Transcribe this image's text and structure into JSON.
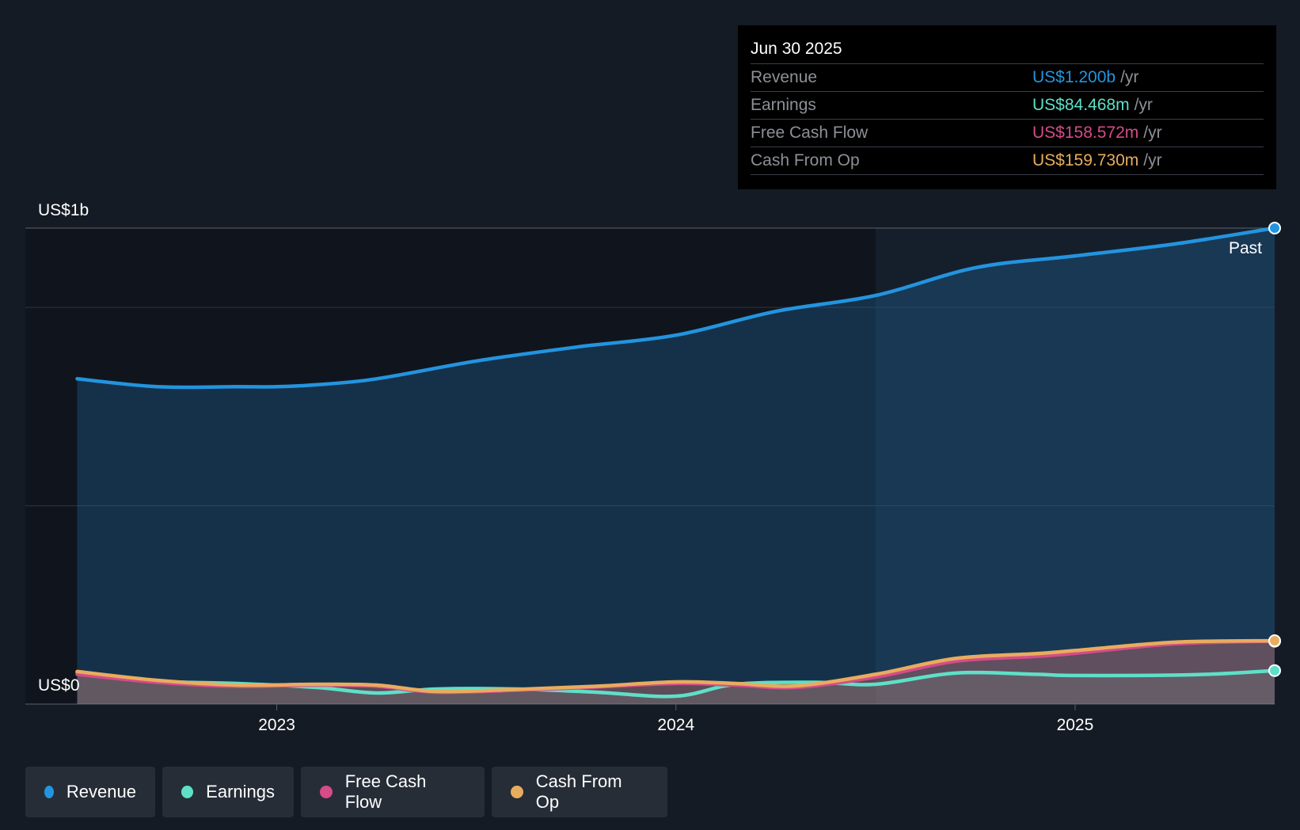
{
  "chart_data": {
    "type": "area",
    "y_axis_labels": [
      "US$1b",
      "US$0"
    ],
    "ylim": [
      0,
      1.2
    ],
    "y_unit": "US$ billions",
    "x_ticks": [
      {
        "label": "2023",
        "x": 2023.0
      },
      {
        "label": "2024",
        "x": 2024.0
      },
      {
        "label": "2025",
        "x": 2025.0
      }
    ],
    "x_range": [
      2022.37,
      2025.5
    ],
    "past_label": "Past",
    "past_start_x": 2024.5,
    "series": [
      {
        "name": "Revenue",
        "color": "#2394df",
        "points": [
          [
            2022.5,
            0.82
          ],
          [
            2022.7,
            0.8
          ],
          [
            2022.9,
            0.8
          ],
          [
            2023.0,
            0.8
          ],
          [
            2023.1,
            0.805
          ],
          [
            2023.25,
            0.82
          ],
          [
            2023.5,
            0.865
          ],
          [
            2023.75,
            0.9
          ],
          [
            2024.0,
            0.93
          ],
          [
            2024.25,
            0.99
          ],
          [
            2024.5,
            1.03
          ],
          [
            2024.75,
            1.1
          ],
          [
            2025.0,
            1.13
          ],
          [
            2025.25,
            1.16
          ],
          [
            2025.5,
            1.2
          ]
        ]
      },
      {
        "name": "Earnings",
        "color": "#5ee0c8",
        "points": [
          [
            2022.5,
            0.08
          ],
          [
            2022.7,
            0.058
          ],
          [
            2022.9,
            0.052
          ],
          [
            2023.1,
            0.042
          ],
          [
            2023.25,
            0.028
          ],
          [
            2023.4,
            0.038
          ],
          [
            2023.6,
            0.038
          ],
          [
            2023.8,
            0.03
          ],
          [
            2024.0,
            0.02
          ],
          [
            2024.15,
            0.05
          ],
          [
            2024.35,
            0.055
          ],
          [
            2024.5,
            0.05
          ],
          [
            2024.7,
            0.078
          ],
          [
            2024.9,
            0.075
          ],
          [
            2025.0,
            0.072
          ],
          [
            2025.3,
            0.074
          ],
          [
            2025.5,
            0.084468
          ]
        ]
      },
      {
        "name": "Free Cash Flow",
        "color": "#d64b8a",
        "points": [
          [
            2022.5,
            0.075
          ],
          [
            2022.7,
            0.055
          ],
          [
            2022.9,
            0.045
          ],
          [
            2023.1,
            0.048
          ],
          [
            2023.25,
            0.045
          ],
          [
            2023.4,
            0.03
          ],
          [
            2023.6,
            0.035
          ],
          [
            2023.8,
            0.043
          ],
          [
            2024.0,
            0.052
          ],
          [
            2024.15,
            0.048
          ],
          [
            2024.3,
            0.042
          ],
          [
            2024.5,
            0.068
          ],
          [
            2024.7,
            0.108
          ],
          [
            2024.9,
            0.12
          ],
          [
            2025.0,
            0.128
          ],
          [
            2025.25,
            0.152
          ],
          [
            2025.5,
            0.158572
          ]
        ]
      },
      {
        "name": "Cash From Op",
        "color": "#e8ac5e",
        "points": [
          [
            2022.5,
            0.082
          ],
          [
            2022.7,
            0.06
          ],
          [
            2022.9,
            0.048
          ],
          [
            2023.1,
            0.05
          ],
          [
            2023.25,
            0.048
          ],
          [
            2023.4,
            0.032
          ],
          [
            2023.6,
            0.037
          ],
          [
            2023.8,
            0.045
          ],
          [
            2024.0,
            0.056
          ],
          [
            2024.15,
            0.052
          ],
          [
            2024.3,
            0.046
          ],
          [
            2024.5,
            0.075
          ],
          [
            2024.7,
            0.115
          ],
          [
            2024.9,
            0.127
          ],
          [
            2025.0,
            0.135
          ],
          [
            2025.25,
            0.156
          ],
          [
            2025.5,
            0.15973
          ]
        ]
      }
    ]
  },
  "tooltip": {
    "date": "Jun 30 2025",
    "rows": [
      {
        "label": "Revenue",
        "value": "US$1.200b",
        "unit": "/yr",
        "color": "#2394df"
      },
      {
        "label": "Earnings",
        "value": "US$84.468m",
        "unit": "/yr",
        "color": "#5ee0c8"
      },
      {
        "label": "Free Cash Flow",
        "value": "US$158.572m",
        "unit": "/yr",
        "color": "#d64b8a"
      },
      {
        "label": "Cash From Op",
        "value": "US$159.730m",
        "unit": "/yr",
        "color": "#e8ac5e"
      }
    ]
  },
  "legend": [
    {
      "label": "Revenue",
      "color": "#2394df"
    },
    {
      "label": "Earnings",
      "color": "#5ee0c8"
    },
    {
      "label": "Free Cash Flow",
      "color": "#d64b8a"
    },
    {
      "label": "Cash From Op",
      "color": "#e8ac5e"
    }
  ]
}
